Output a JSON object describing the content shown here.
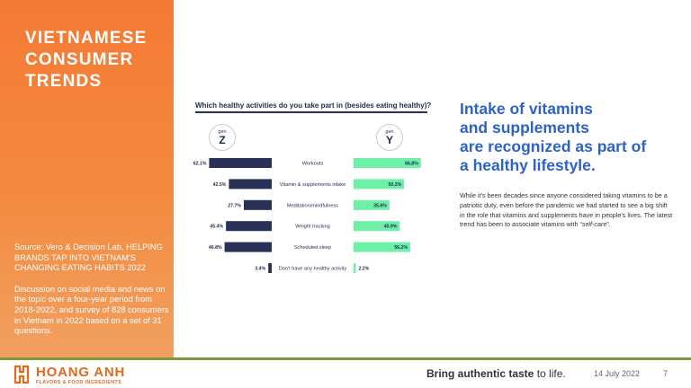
{
  "sidebar": {
    "title": "VIETNAMESE\nCONSUMER\nTRENDS",
    "source": "Source: Vero & Decision Lab, HELPING BRANDS TAP INTO VIETNAM'S CHANGING EATING HABITS 2022",
    "discussion": "Discussion on social media and news on the topic over a four-year period from 2018-2022, and survey of 828 consumers in Vietnam in 2022 based on a set of 31 questions."
  },
  "chart_data": {
    "type": "bar",
    "title": "Which healthy activities do you take part in (besides eating healthy)?",
    "unit": "%",
    "categories": [
      "Workouts",
      "Vitamin & supplements intake",
      "Meditation/mindfulness",
      "Weight tracking",
      "Scheduled sleep",
      "Don't have any healthy activity"
    ],
    "series": [
      {
        "name": "Z",
        "label_prefix": "gen",
        "color": "#2a3158",
        "values": [
          62.1,
          42.5,
          27.7,
          45.4,
          46.8,
          3.4
        ]
      },
      {
        "name": "Y",
        "label_prefix": "gen",
        "color": "#6ef0a8",
        "values": [
          66.8,
          50.2,
          35.6,
          45.9,
          56.2,
          2.2
        ]
      }
    ]
  },
  "headline": "Intake of vitamins\nand supplements\nare recognized as part of\na healthy lifestyle.",
  "body": {
    "text_before": "While it's been decades since anyone considered taking vitamins to be a patriotic duty, even before the pandemic we had started to see a big shift in the role that vitamins and supplements have in people's lives. The latest trend has been to associate vitamins with “",
    "emphasis": "self-care",
    "text_after": "”."
  },
  "footer": {
    "brand_name": "HOANG ANH",
    "brand_sub": "FLAVORS & FOOD INGREDIENTS",
    "tagline_bold": "Bring authentic taste",
    "tagline_rest": " to life.",
    "date": "14 July 2022",
    "page": "7"
  },
  "colors": {
    "sidebar": "#f47a34",
    "headline": "#2d63c8",
    "footer_line": "#7b9a3c",
    "brand": "#e26a1c"
  }
}
